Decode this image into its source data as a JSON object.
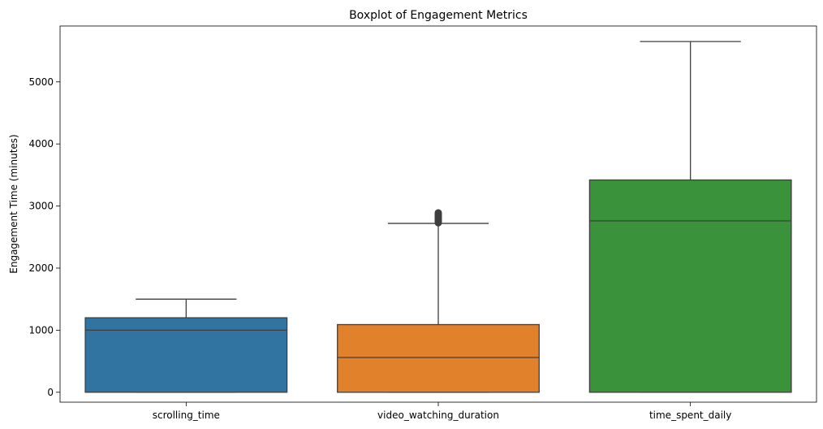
{
  "chart_data": {
    "type": "box",
    "title": "Boxplot of Engagement Metrics",
    "xlabel": "",
    "ylabel": "Engagement Time (minutes)",
    "ylim": [
      -160,
      5900
    ],
    "yticks": [
      0,
      1000,
      2000,
      3000,
      4000,
      5000
    ],
    "grid": false,
    "categories": [
      "scrolling_time",
      "video_watching_duration",
      "time_spent_daily"
    ],
    "series": [
      {
        "category": "scrolling_time",
        "color": "#3274a1",
        "whisker_low": 0,
        "q1": 0,
        "median": 1000,
        "q3": 1200,
        "whisker_high": 1500,
        "outliers": []
      },
      {
        "category": "video_watching_duration",
        "color": "#e1812c",
        "whisker_low": 0,
        "q1": 0,
        "median": 560,
        "q3": 1090,
        "whisker_high": 2720,
        "outliers": [
          2730,
          2750,
          2770,
          2790,
          2810,
          2830,
          2850,
          2870,
          2890
        ]
      },
      {
        "category": "time_spent_daily",
        "color": "#3a923a",
        "whisker_low": 0,
        "q1": 0,
        "median": 2760,
        "q3": 3420,
        "whisker_high": 5650,
        "outliers": []
      }
    ]
  }
}
